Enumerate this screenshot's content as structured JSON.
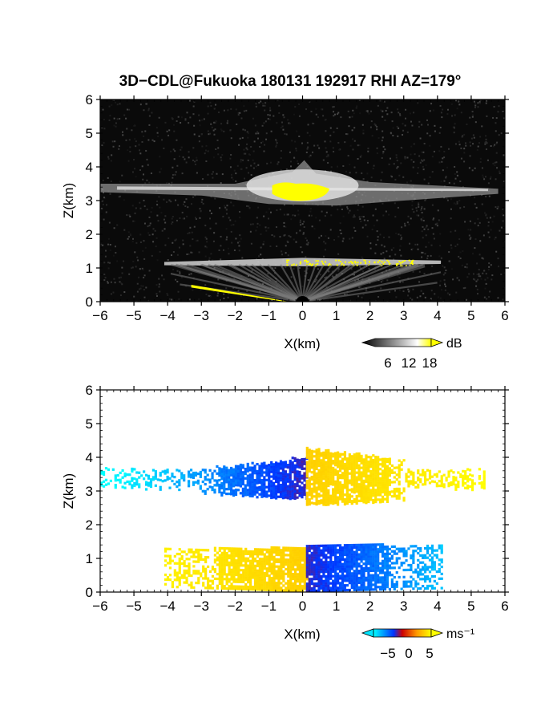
{
  "title": "3D−CDL@Fukuoka 180131 192917 RHI AZ=179°",
  "chart_data": [
    {
      "type": "heatmap",
      "panel": "top",
      "quantity": "reflectivity",
      "xlabel": "X(km)",
      "ylabel": "Z(km)",
      "xlim": [
        -6,
        6
      ],
      "ylim": [
        0,
        6
      ],
      "xticks": [
        -6,
        -5,
        -4,
        -3,
        -2,
        -1,
        0,
        1,
        2,
        3,
        4,
        5,
        6
      ],
      "yticks": [
        0,
        1,
        2,
        3,
        4,
        5,
        6
      ],
      "background": "#0a0a0a",
      "colorbar": {
        "unit": "dB",
        "ticks": [
          6,
          12,
          18
        ],
        "colors": [
          "#000000",
          "#ffffff",
          "#ffff00"
        ]
      },
      "features": [
        {
          "name": "upper-cloud-layer",
          "x": [
            -6,
            5.8
          ],
          "z": [
            3.0,
            3.6
          ],
          "peak_z": 4.2,
          "level": "bright"
        },
        {
          "name": "upper-saturated-core",
          "x": [
            -0.9,
            0.8
          ],
          "z": [
            2.9,
            3.5
          ],
          "level": "saturated"
        },
        {
          "name": "lower-cloud-layer",
          "x": [
            -4.1,
            4.1
          ],
          "z": [
            1.0,
            1.3
          ],
          "level": "bright"
        },
        {
          "name": "low-level-fan",
          "x": [
            -3.5,
            3.5
          ],
          "z": [
            0.0,
            1.1
          ],
          "level": "medium"
        },
        {
          "name": "ground-saturation",
          "x": [
            -3.3,
            -0.4
          ],
          "z": [
            0.0,
            0.5
          ],
          "level": "saturated"
        }
      ]
    },
    {
      "type": "heatmap",
      "panel": "bottom",
      "quantity": "doppler-velocity",
      "xlabel": "X(km)",
      "ylabel": "Z(km)",
      "xlim": [
        -6,
        6
      ],
      "ylim": [
        0,
        6
      ],
      "xticks": [
        -6,
        -5,
        -4,
        -3,
        -2,
        -1,
        0,
        1,
        2,
        3,
        4,
        5,
        6
      ],
      "yticks": [
        0,
        1,
        2,
        3,
        4,
        5,
        6
      ],
      "colorbar": {
        "unit": "ms⁻¹",
        "ticks": [
          -5,
          0,
          5
        ],
        "colors": [
          "#00ffff",
          "#0000ff",
          "#ff0000",
          "#ffff00"
        ]
      },
      "features": [
        {
          "name": "upper-layer-west",
          "x": [
            -6,
            0.1
          ],
          "z": [
            2.7,
            3.9
          ],
          "velocity_range": [
            -6,
            -1
          ]
        },
        {
          "name": "upper-layer-east",
          "x": [
            0.1,
            5.4
          ],
          "z": [
            2.5,
            4.2
          ],
          "velocity_range": [
            1,
            6
          ]
        },
        {
          "name": "lower-layer-west",
          "x": [
            -4.1,
            0.1
          ],
          "z": [
            0.0,
            1.3
          ],
          "velocity_range": [
            1,
            6
          ]
        },
        {
          "name": "lower-layer-east",
          "x": [
            0.1,
            4.1
          ],
          "z": [
            0.0,
            1.4
          ],
          "velocity_range": [
            -6,
            -1
          ]
        }
      ]
    }
  ]
}
